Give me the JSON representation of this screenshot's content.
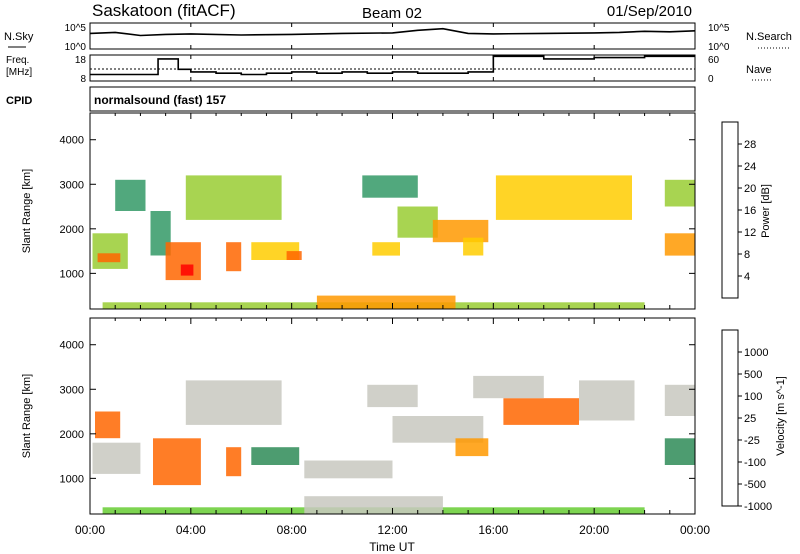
{
  "header": {
    "station": "Saskatoon (fitACF)",
    "beam": "Beam 02",
    "date": "01/Sep/2010"
  },
  "noise_panel": {
    "left_label": "N.Sky",
    "right_label": "N.Search",
    "left_ticks": [
      "10^5",
      "10^0"
    ],
    "right_ticks": [
      "10^5",
      "10^0"
    ]
  },
  "freq_panel": {
    "left_label_1": "Freq.",
    "left_label_2": "[MHz]",
    "right_label": "Nave",
    "left_ticks": [
      "18",
      "8"
    ],
    "right_ticks": [
      "60",
      "0"
    ]
  },
  "cpid": {
    "label": "CPID",
    "value": "normalsound (fast) 157"
  },
  "x_axis": {
    "ticks": [
      "00:00",
      "04:00",
      "08:00",
      "12:00",
      "16:00",
      "20:00",
      "00:00"
    ],
    "title": "Time UT"
  },
  "power_colorbar": {
    "title": "Power [dB]",
    "ticks": [
      "28",
      "24",
      "20",
      "16",
      "12",
      "8",
      "4"
    ],
    "colors": [
      "#ff0000",
      "#ff6600",
      "#ff9900",
      "#ffcc00",
      "#99cc33",
      "#339966",
      "#2255aa",
      "#0000ff"
    ]
  },
  "velocity_colorbar": {
    "title": "Velocity [m s^-1]",
    "ticks": [
      "1000",
      "500",
      "100",
      "25",
      "-25",
      "-100",
      "-500",
      "-1000"
    ],
    "colors": [
      "#1a33aa",
      "#2e8b57",
      "#2e8b57",
      "#66cc33",
      "#c8c8c0",
      "#ff9900",
      "#ff6600",
      "#ff0000"
    ]
  },
  "chart_data": [
    {
      "type": "line",
      "panel": "noise",
      "series": [
        {
          "name": "N.Sky",
          "x": [
            0,
            1,
            2,
            3,
            4,
            6,
            8,
            10,
            12,
            13,
            14,
            15,
            16,
            18,
            20,
            21,
            22,
            23,
            24
          ],
          "values": [
            3.0,
            3.2,
            2.6,
            2.8,
            2.9,
            2.7,
            2.8,
            3.0,
            3.1,
            3.6,
            3.9,
            3.0,
            2.9,
            3.0,
            3.1,
            3.2,
            3.4,
            3.3,
            3.5
          ]
        }
      ],
      "xlim": [
        0,
        24
      ]
    },
    {
      "type": "line",
      "panel": "frequency",
      "series": [
        {
          "name": "Freq.",
          "x": [
            0,
            1.5,
            2,
            2.7,
            3,
            3.5,
            4,
            5,
            6,
            7,
            8,
            9,
            10,
            11,
            12,
            13,
            15,
            15.8,
            16,
            17,
            18,
            19,
            20,
            21,
            22,
            24
          ],
          "values": [
            10.5,
            10.5,
            10.5,
            16.5,
            16.5,
            12.5,
            11.5,
            11.0,
            10.5,
            11.0,
            11.5,
            11.0,
            11.5,
            11.0,
            11.5,
            11.0,
            11.5,
            11.5,
            17.5,
            17.5,
            16.5,
            16.5,
            17.0,
            17.0,
            17.5,
            17.5
          ]
        }
      ],
      "xlim": [
        0,
        24
      ],
      "ylim": [
        8,
        18
      ]
    },
    {
      "type": "heatmap",
      "panel": "power",
      "ylabel": "Slant Range [km]",
      "yticks": [
        1000,
        2000,
        3000,
        4000
      ],
      "ylim": [
        200,
        4600
      ],
      "xlim": [
        0,
        24
      ],
      "regions": [
        {
          "x": [
            0.1,
            1.5
          ],
          "y": [
            1100,
            1900
          ],
          "value": 14
        },
        {
          "x": [
            0.3,
            1.2
          ],
          "y": [
            1250,
            1450
          ],
          "value": 26
        },
        {
          "x": [
            1.0,
            2.2
          ],
          "y": [
            2400,
            3100
          ],
          "value": 8
        },
        {
          "x": [
            2.4,
            3.2
          ],
          "y": [
            1400,
            2400
          ],
          "value": 10
        },
        {
          "x": [
            3.0,
            4.4
          ],
          "y": [
            850,
            1700
          ],
          "value": 26
        },
        {
          "x": [
            3.6,
            4.1
          ],
          "y": [
            950,
            1200
          ],
          "value": 30
        },
        {
          "x": [
            3.8,
            7.6
          ],
          "y": [
            2200,
            3200
          ],
          "value": 14
        },
        {
          "x": [
            5.4,
            6.0
          ],
          "y": [
            1050,
            1700
          ],
          "value": 26
        },
        {
          "x": [
            6.4,
            8.3
          ],
          "y": [
            1300,
            1700
          ],
          "value": 18
        },
        {
          "x": [
            7.8,
            8.4
          ],
          "y": [
            1300,
            1500
          ],
          "value": 26
        },
        {
          "x": [
            10.8,
            13.0
          ],
          "y": [
            2700,
            3200
          ],
          "value": 10
        },
        {
          "x": [
            11.2,
            12.3
          ],
          "y": [
            1400,
            1700
          ],
          "value": 16
        },
        {
          "x": [
            12.2,
            13.8
          ],
          "y": [
            1800,
            2500
          ],
          "value": 14
        },
        {
          "x": [
            13.6,
            15.8
          ],
          "y": [
            1700,
            2200
          ],
          "value": 22
        },
        {
          "x": [
            14.8,
            15.6
          ],
          "y": [
            1400,
            1800
          ],
          "value": 18
        },
        {
          "x": [
            16.1,
            21.5
          ],
          "y": [
            2200,
            3200
          ],
          "value": 16
        },
        {
          "x": [
            22.8,
            24.0
          ],
          "y": [
            2500,
            3100
          ],
          "value": 14
        },
        {
          "x": [
            22.8,
            24.0
          ],
          "y": [
            1400,
            1900
          ],
          "value": 20
        },
        {
          "x": [
            0.5,
            22.0
          ],
          "y": [
            200,
            350
          ],
          "value": 14
        },
        {
          "x": [
            9.0,
            14.5
          ],
          "y": [
            200,
            500
          ],
          "value": 20
        }
      ]
    },
    {
      "type": "heatmap",
      "panel": "velocity",
      "ylabel": "Slant Range [km]",
      "yticks": [
        1000,
        2000,
        3000,
        4000
      ],
      "ylim": [
        200,
        4600
      ],
      "xlim": [
        0,
        24
      ],
      "regions": [
        {
          "x": [
            0.1,
            2.0
          ],
          "y": [
            1100,
            1800
          ],
          "value": 0
        },
        {
          "x": [
            0.2,
            1.2
          ],
          "y": [
            1900,
            2500
          ],
          "value": -150
        },
        {
          "x": [
            2.5,
            4.4
          ],
          "y": [
            850,
            1900
          ],
          "value": -300
        },
        {
          "x": [
            3.8,
            7.6
          ],
          "y": [
            2200,
            3200
          ],
          "value": 0
        },
        {
          "x": [
            5.4,
            6.0
          ],
          "y": [
            1050,
            1700
          ],
          "value": -400
        },
        {
          "x": [
            6.4,
            8.3
          ],
          "y": [
            1300,
            1700
          ],
          "value": 300
        },
        {
          "x": [
            8.5,
            12.0
          ],
          "y": [
            1000,
            1400
          ],
          "value": 0
        },
        {
          "x": [
            12.0,
            15.6
          ],
          "y": [
            1800,
            2400
          ],
          "value": 0
        },
        {
          "x": [
            11.0,
            13.0
          ],
          "y": [
            2600,
            3100
          ],
          "value": 0
        },
        {
          "x": [
            14.5,
            15.8
          ],
          "y": [
            1500,
            1900
          ],
          "value": -50
        },
        {
          "x": [
            16.4,
            19.4
          ],
          "y": [
            2200,
            2800
          ],
          "value": -300
        },
        {
          "x": [
            15.2,
            18.0
          ],
          "y": [
            2800,
            3300
          ],
          "value": 0
        },
        {
          "x": [
            19.4,
            21.6
          ],
          "y": [
            2300,
            3200
          ],
          "value": 0
        },
        {
          "x": [
            22.8,
            24.0
          ],
          "y": [
            2400,
            3100
          ],
          "value": 0
        },
        {
          "x": [
            22.8,
            24.0
          ],
          "y": [
            1300,
            1900
          ],
          "value": 200
        },
        {
          "x": [
            0.5,
            22.0
          ],
          "y": [
            200,
            350
          ],
          "value": 50
        },
        {
          "x": [
            8.5,
            14.0
          ],
          "y": [
            200,
            600
          ],
          "value": 0
        }
      ]
    }
  ]
}
